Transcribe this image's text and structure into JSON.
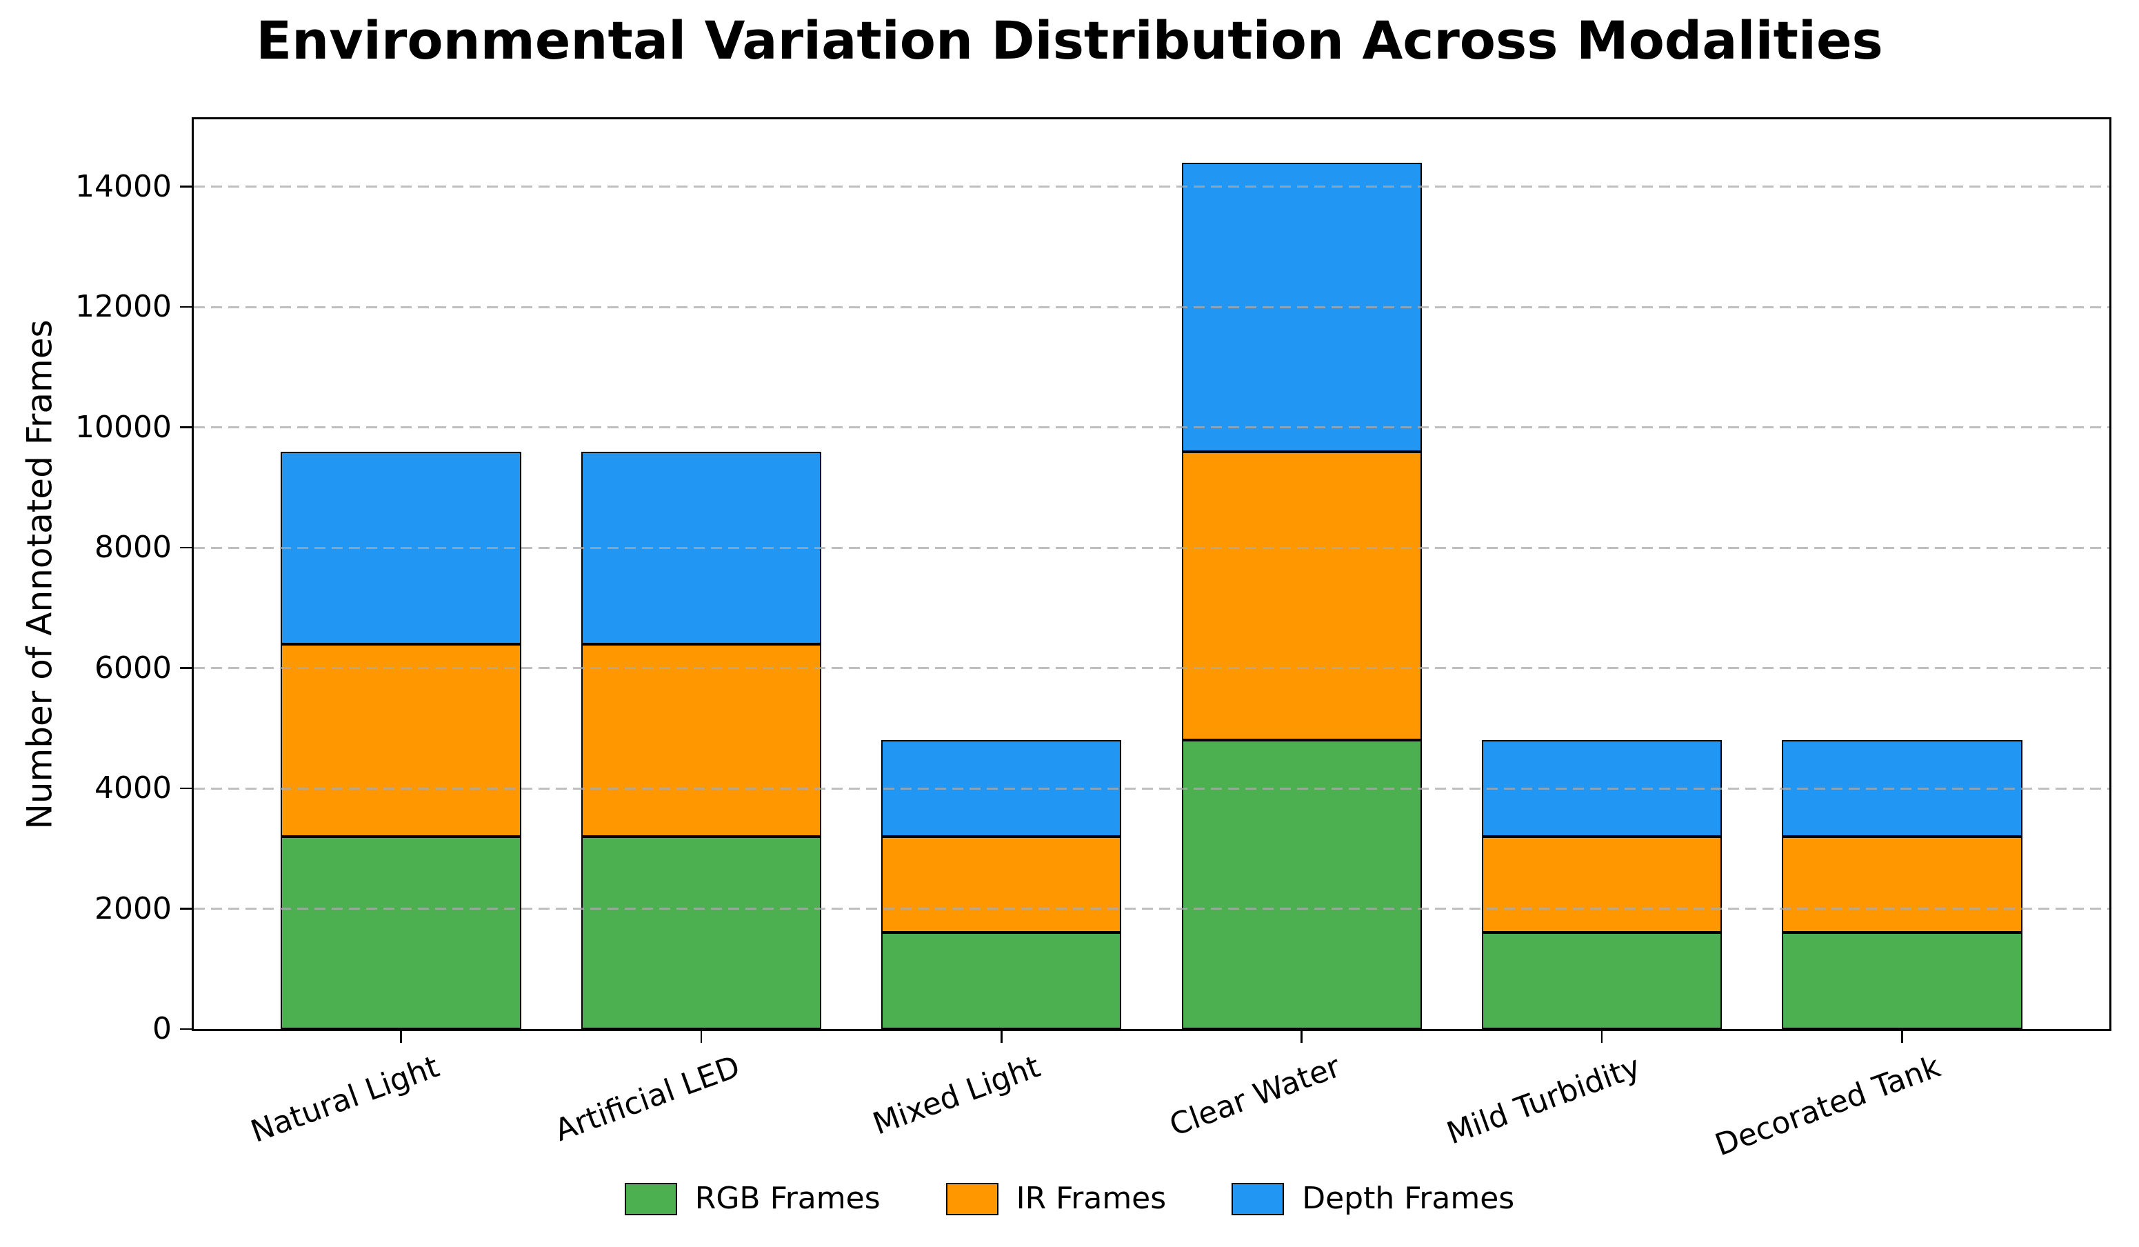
{
  "chart_data": {
    "type": "bar",
    "stacked": true,
    "title": "Environmental Variation Distribution Across Modalities",
    "xlabel": "",
    "ylabel": "Number of Annotated Frames",
    "categories": [
      "Natural Light",
      "Artificial LED",
      "Mixed Light",
      "Clear Water",
      "Mild Turbidity",
      "Decorated Tank"
    ],
    "series": [
      {
        "name": "RGB Frames",
        "color": "#4CAF50",
        "values": [
          3200,
          3200,
          1600,
          4800,
          1600,
          1600
        ]
      },
      {
        "name": "IR Frames",
        "color": "#FF9800",
        "values": [
          3200,
          3200,
          1600,
          4800,
          1600,
          1600
        ]
      },
      {
        "name": "Depth Frames",
        "color": "#2196F3",
        "values": [
          3200,
          3200,
          1600,
          4800,
          1600,
          1600
        ]
      }
    ],
    "stack_totals": [
      9600,
      9600,
      4800,
      14400,
      4800,
      4800
    ],
    "ylim": [
      0,
      15120
    ],
    "y_ticks": [
      0,
      2000,
      4000,
      6000,
      8000,
      10000,
      12000,
      14000
    ],
    "y_tick_labels": [
      "0",
      "2000",
      "4000",
      "6000",
      "8000",
      "10000",
      "12000",
      "14000"
    ],
    "grid": "horizontal dashed, drawn above bars",
    "gridline_color": "rgba(170,170,170,0.75)",
    "bar_edge_color": "#000000",
    "legend_position": "bottom center",
    "x_tick_label_rotation_deg": 20
  }
}
